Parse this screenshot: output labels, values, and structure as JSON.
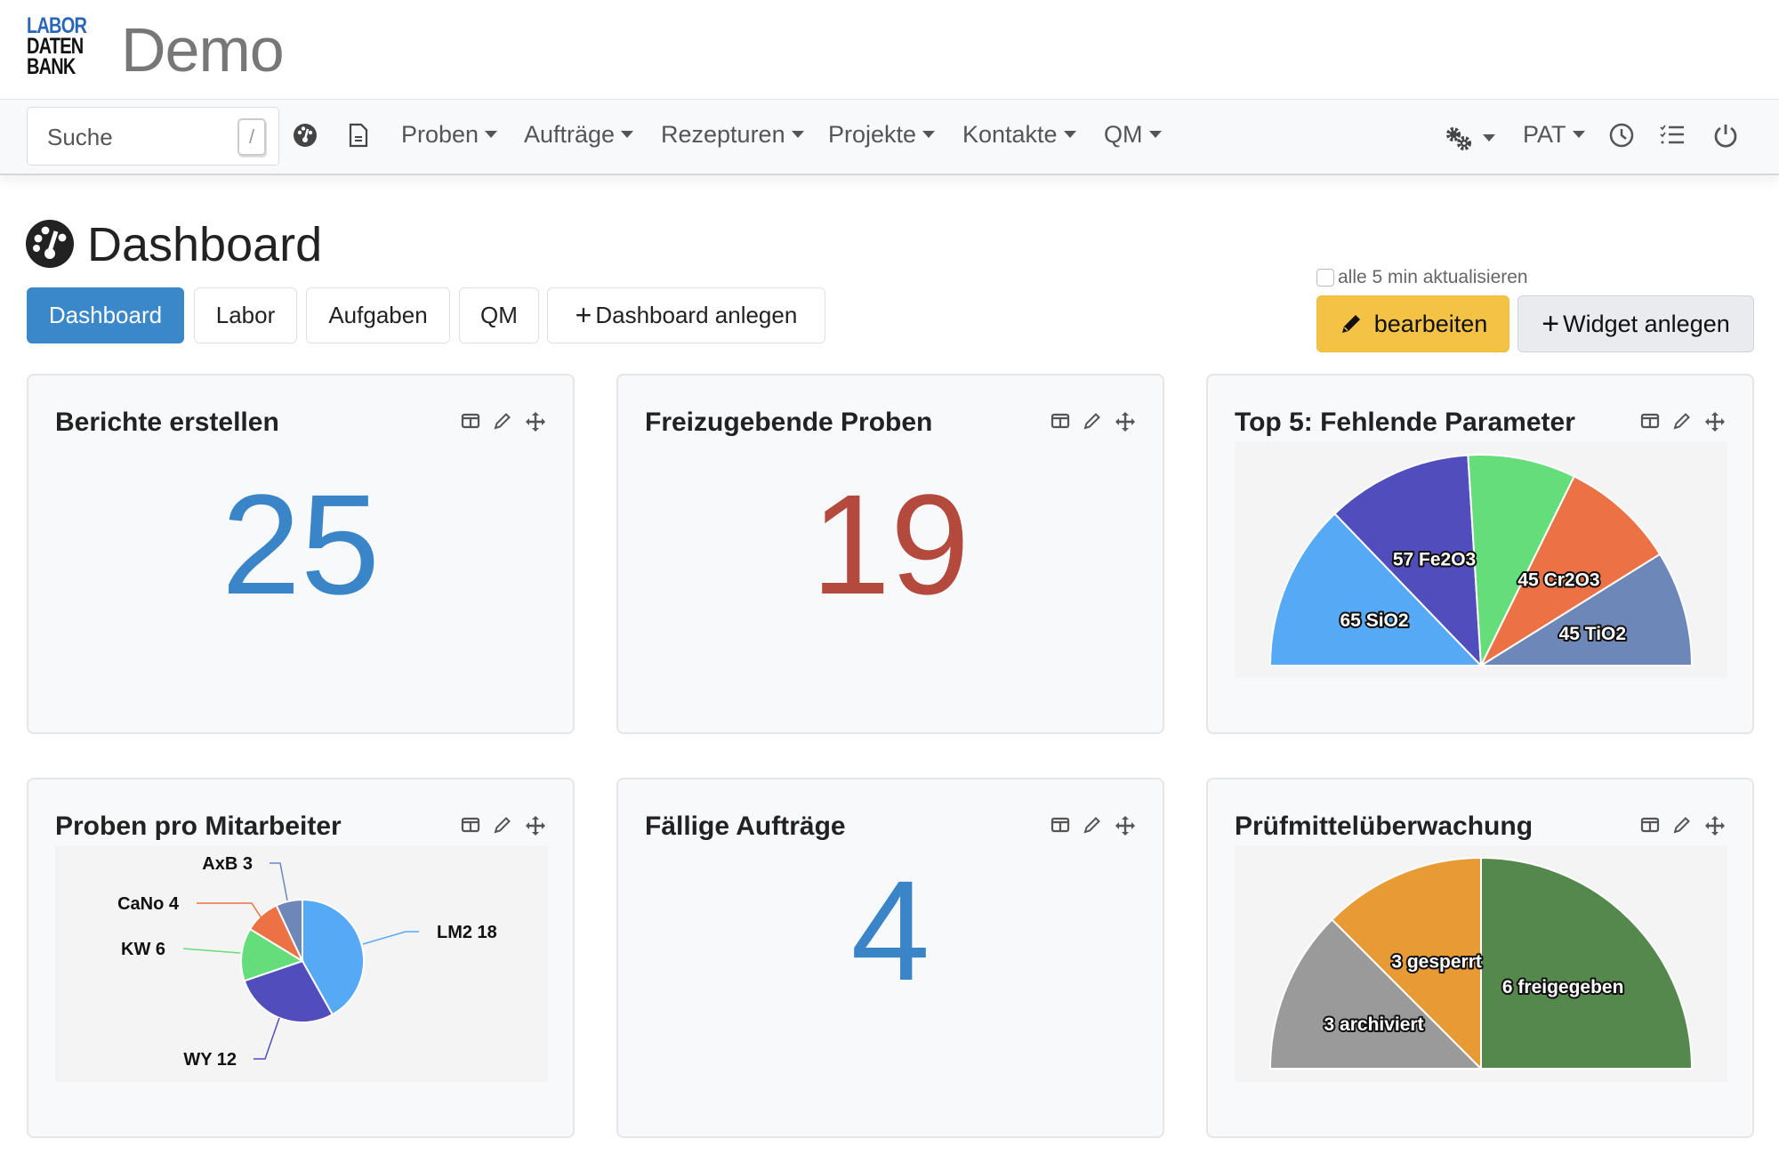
{
  "header": {
    "logo": [
      "LABOR",
      "DATEN",
      "BANK"
    ],
    "brand": "Demo"
  },
  "navbar": {
    "search_placeholder": "Suche",
    "search_shortcut": "/",
    "icons": [
      "dashboard-icon",
      "document-icon"
    ],
    "menus": [
      {
        "label": "Proben"
      },
      {
        "label": "Aufträge"
      },
      {
        "label": "Rezepturen"
      },
      {
        "label": "Projekte"
      },
      {
        "label": "Kontakte"
      },
      {
        "label": "QM"
      }
    ],
    "right": {
      "settings_icon": "gears-icon",
      "user": "PAT",
      "icons": [
        "clock-icon",
        "checklist-icon",
        "power-icon"
      ]
    }
  },
  "page": {
    "title": "Dashboard",
    "title_icon": "dashboard-icon"
  },
  "tabs": [
    {
      "label": "Dashboard",
      "active": true
    },
    {
      "label": "Labor"
    },
    {
      "label": "Aufgaben"
    },
    {
      "label": "QM"
    },
    {
      "label": "Dashboard anlegen",
      "icon": "plus-icon"
    }
  ],
  "toolbar": {
    "auto_refresh_label": "alle 5 min aktualisieren",
    "auto_refresh_checked": false,
    "edit_label": "bearbeiten",
    "add_widget_label": "Widget anlegen"
  },
  "widgets": [
    {
      "title": "Berichte erstellen",
      "value": "25",
      "color": "#3a85c8"
    },
    {
      "title": "Freizugebende Proben",
      "value": "19",
      "color": "#b44a3d"
    },
    {
      "title": "Top 5: Fehlende Parameter"
    },
    {
      "title": "Proben pro Mitarbeiter"
    },
    {
      "title": "Fällige Aufträge",
      "value": "4",
      "color": "#3a85c8"
    },
    {
      "title": "Prüfmittelüberwachung"
    }
  ],
  "chart_data": [
    {
      "type": "pie",
      "variant": "half-pie",
      "widget": "Top 5: Fehlende Parameter",
      "slices": [
        {
          "name": "SiO2",
          "value": 65,
          "label": "65 SiO2",
          "color": "#56aaf5"
        },
        {
          "name": "Fe2O3",
          "value": 57,
          "label": "57 Fe2O3",
          "color": "#524dbd"
        },
        {
          "name": "",
          "value": 42,
          "label": "",
          "color": "#65dd7b"
        },
        {
          "name": "Cr2O3",
          "value": 45,
          "label": "45 Cr2O3",
          "color": "#ec7245"
        },
        {
          "name": "TiO2",
          "value": 45,
          "label": "45 TiO2",
          "color": "#6d88b8"
        }
      ]
    },
    {
      "type": "pie",
      "widget": "Proben pro Mitarbeiter",
      "slices": [
        {
          "name": "LM2",
          "value": 18,
          "label": "LM2 18",
          "color": "#56aaf5"
        },
        {
          "name": "WY",
          "value": 12,
          "label": "WY 12",
          "color": "#524dbd"
        },
        {
          "name": "KW",
          "value": 6,
          "label": "KW 6",
          "color": "#65dd7b"
        },
        {
          "name": "CaNo",
          "value": 4,
          "label": "CaNo 4",
          "color": "#ec7245"
        },
        {
          "name": "AxB",
          "value": 3,
          "label": "AxB 3",
          "color": "#6d88b8"
        }
      ]
    },
    {
      "type": "pie",
      "variant": "half-pie",
      "widget": "Prüfmittelüberwachung",
      "slices": [
        {
          "name": "archiviert",
          "value": 3,
          "label": "3 archiviert",
          "color": "#9a9a9a"
        },
        {
          "name": "gesperrt",
          "value": 3,
          "label": "3 gesperrt",
          "color": "#e89a35"
        },
        {
          "name": "freigegeben",
          "value": 6,
          "label": "6 freigegeben",
          "color": "#55884c"
        }
      ]
    }
  ]
}
